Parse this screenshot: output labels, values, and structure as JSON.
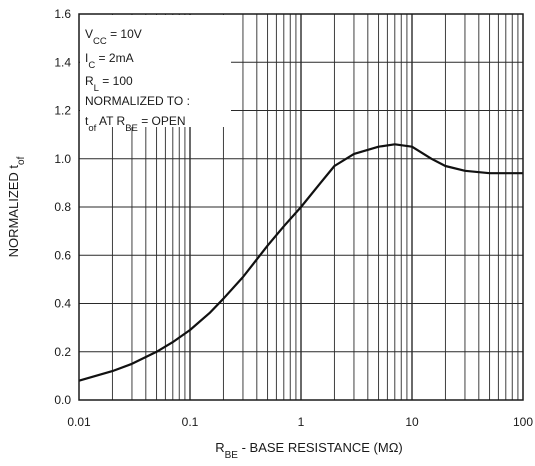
{
  "chart_data": {
    "type": "line",
    "x_scale": "log",
    "grid": true,
    "xlim": [
      0.01,
      100
    ],
    "ylim": [
      0.0,
      1.6
    ],
    "x_ticks": [
      "0.01",
      "0.1",
      "1",
      "10",
      "100"
    ],
    "y_ticks": [
      "0.0",
      "0.2",
      "0.4",
      "0.6",
      "0.8",
      "1.0",
      "1.2",
      "1.4",
      "1.6"
    ],
    "ylabel": {
      "main": "NORMALIZED t",
      "sub": "of"
    },
    "xlabel": {
      "main": "R",
      "sub": "BE",
      "rest": " - BASE RESISTANCE (MΩ)"
    },
    "annotation": [
      {
        "main": "V",
        "sub": "CC",
        "rest": " = 10V"
      },
      {
        "main": "I",
        "sub": "C",
        "rest": " = 2mA"
      },
      {
        "main": "R",
        "sub": "L",
        "rest": " = 100"
      },
      {
        "main": "NORMALIZED TO :",
        "sub": "",
        "rest": ""
      },
      {
        "main": "t",
        "sub": "of",
        "rest": "  AT R",
        "sub2": "BE",
        "rest2": " = OPEN"
      }
    ],
    "series": [
      {
        "x": [
          0.01,
          0.02,
          0.03,
          0.05,
          0.07,
          0.1,
          0.15,
          0.2,
          0.3,
          0.5,
          0.7,
          1.0,
          1.5,
          2.0,
          3.0,
          5.0,
          7.0,
          10.0,
          15.0,
          20.0,
          30.0,
          50.0,
          100.0
        ],
        "y": [
          0.08,
          0.12,
          0.15,
          0.2,
          0.24,
          0.29,
          0.36,
          0.42,
          0.51,
          0.64,
          0.72,
          0.8,
          0.9,
          0.97,
          1.02,
          1.05,
          1.06,
          1.05,
          1.0,
          0.97,
          0.95,
          0.94,
          0.94
        ]
      }
    ]
  }
}
